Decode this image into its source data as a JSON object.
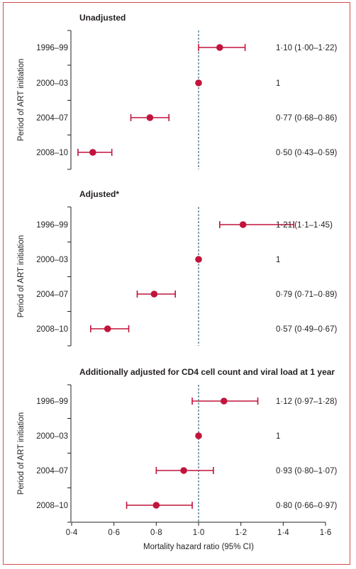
{
  "colors": {
    "marker": "#c0143c",
    "frame": "#d94a4a",
    "ref_line": "#0b4b6e",
    "text": "#231f20",
    "axis": "#231f20"
  },
  "chart_data": [
    {
      "type": "scatter",
      "title": "Unadjusted",
      "ylabel": "Period of ART initiation",
      "xlabel": "",
      "categories": [
        "1996–99",
        "2000–03",
        "2004–07",
        "2008–10"
      ],
      "series": [
        {
          "estimate": [
            1.1,
            1.0,
            0.77,
            0.5
          ],
          "lower": [
            1.0,
            null,
            0.68,
            0.43
          ],
          "upper": [
            1.22,
            null,
            0.86,
            0.59
          ],
          "labels": [
            "1·10 (1·00–1·22)",
            "1",
            "0·77 (0·68–0·86)",
            "0·50 (0·43–0·59)"
          ]
        }
      ],
      "xlim": [
        0.4,
        1.6
      ],
      "reference_line": 1.0
    },
    {
      "type": "scatter",
      "title": "Adjusted*",
      "ylabel": "Period of ART initiation",
      "xlabel": "",
      "categories": [
        "1996–99",
        "2000–03",
        "2004–07",
        "2008–10"
      ],
      "series": [
        {
          "estimate": [
            1.21,
            1.0,
            0.79,
            0.57
          ],
          "lower": [
            1.1,
            null,
            0.71,
            0.49
          ],
          "upper": [
            1.45,
            null,
            0.89,
            0.67
          ],
          "labels": [
            "1·21 (1·1–1·45)",
            "1",
            "0·79 (0·71–0·89)",
            "0·57 (0·49–0·67)"
          ]
        }
      ],
      "xlim": [
        0.4,
        1.6
      ],
      "reference_line": 1.0
    },
    {
      "type": "scatter",
      "title": "Additionally adjusted for CD4 cell count and viral load at 1 year",
      "ylabel": "Period of ART initiation",
      "xlabel": "Mortality hazard ratio (95% CI)",
      "categories": [
        "1996–99",
        "2000–03",
        "2004–07",
        "2008–10"
      ],
      "series": [
        {
          "estimate": [
            1.12,
            1.0,
            0.93,
            0.8
          ],
          "lower": [
            0.97,
            null,
            0.8,
            0.66
          ],
          "upper": [
            1.28,
            null,
            1.07,
            0.97
          ],
          "labels": [
            "1·12 (0·97–1·28)",
            "1",
            "0·93 (0·80–1·07)",
            "0·80 (0·66–0·97)"
          ]
        }
      ],
      "xlim": [
        0.4,
        1.6
      ],
      "reference_line": 1.0,
      "xticks": [
        0.4,
        0.6,
        0.8,
        1.0,
        1.2,
        1.4,
        1.6
      ],
      "xtick_labels": [
        "0·4",
        "0·6",
        "0·8",
        "1·0",
        "1·2",
        "1·4",
        "1·6"
      ]
    }
  ]
}
